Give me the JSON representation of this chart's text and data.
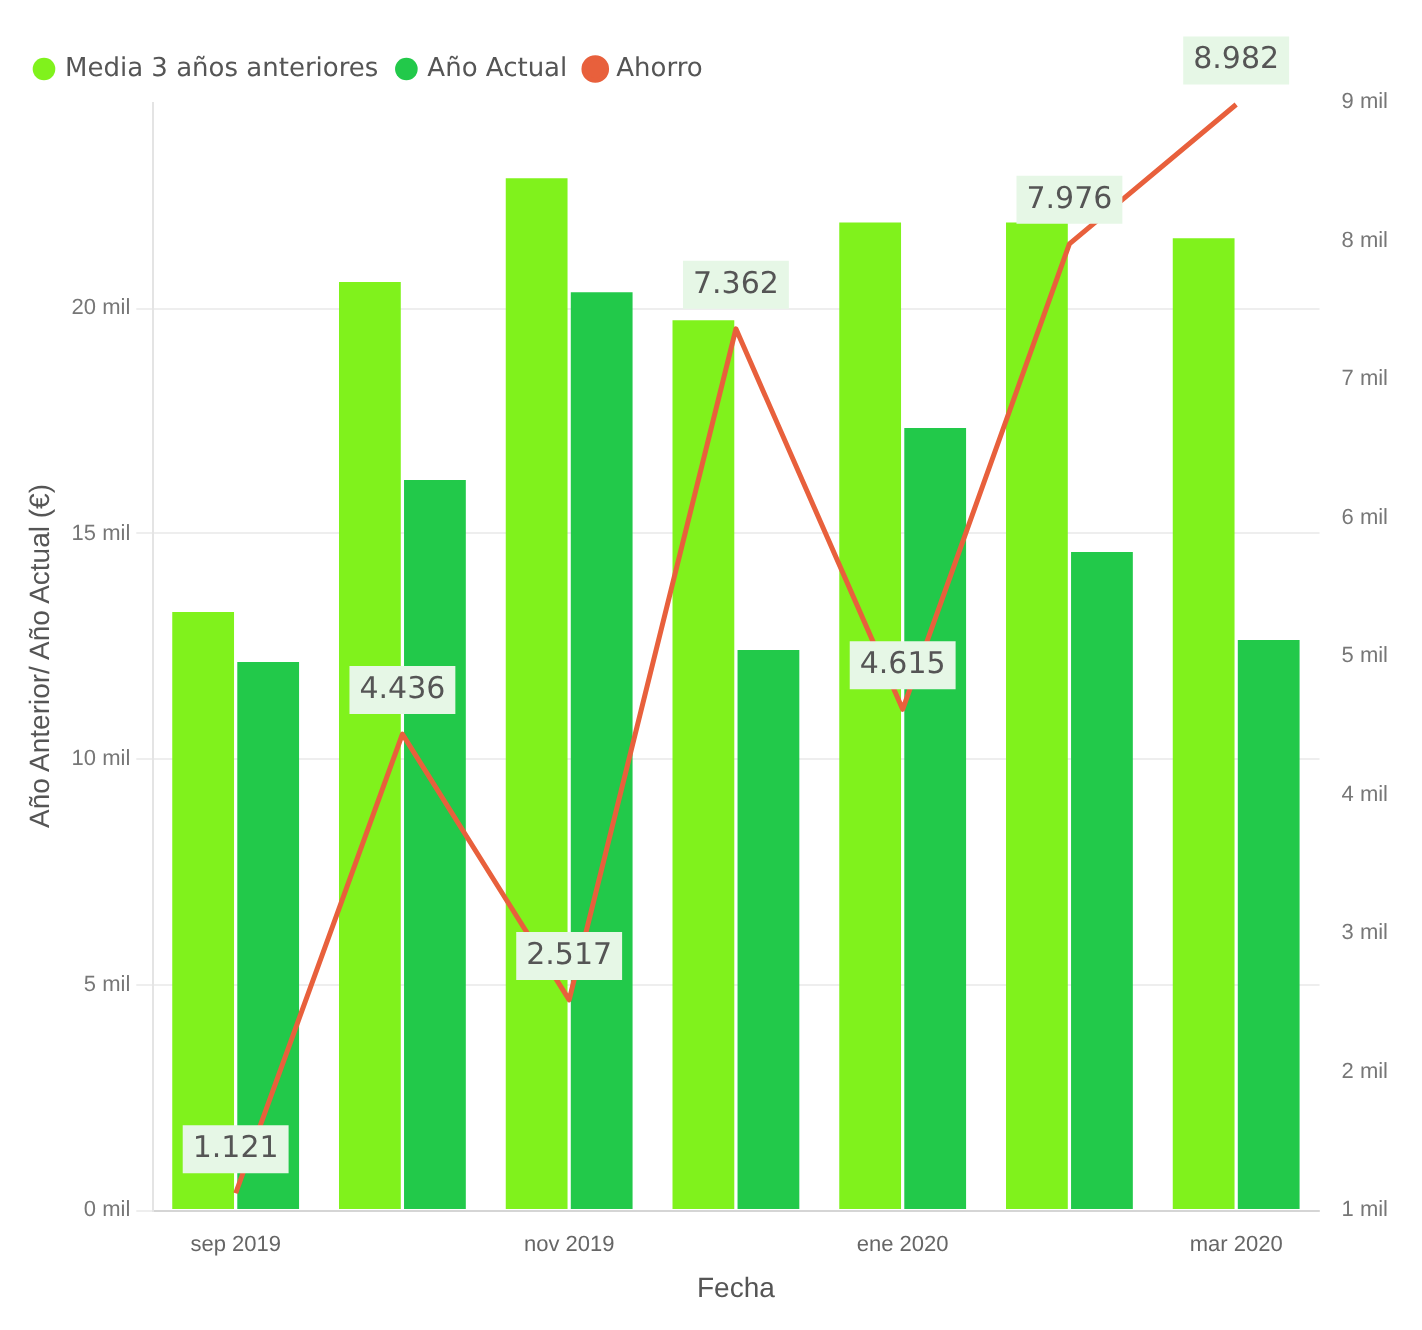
{
  "chart_data": {
    "type": "bar",
    "xlabel": "Fecha",
    "ylabel": "Año Anterior/ Año Actual (€)",
    "categories": [
      "sep 2019",
      null,
      "nov 2019",
      null,
      "ene 2020",
      null,
      "mar 2020"
    ],
    "series": [
      {
        "name": "Media 3 años anteriores",
        "color": "#80f21c",
        "values": [
          13.26,
          20.58,
          22.88,
          19.73,
          21.9,
          21.9,
          21.55
        ]
      },
      {
        "name": "Año Actual",
        "color": "#22c94a",
        "values": [
          12.15,
          16.19,
          20.35,
          12.42,
          17.34,
          14.59,
          12.64
        ]
      },
      {
        "name": "Ahorro",
        "type": "line",
        "axis": "y2",
        "color": "#e8603c",
        "values": [
          1.121,
          4.436,
          2.517,
          7.362,
          4.615,
          7.976,
          8.982
        ],
        "value_labels": [
          "1.121",
          "4.436",
          "2.517",
          "7.362",
          "4.615",
          "7.976",
          "8.982"
        ]
      }
    ],
    "ylim": [
      0,
      24.57
    ],
    "yticks": [
      {
        "value": 0,
        "label": "0 mil"
      },
      {
        "value": 5,
        "label": "5 mil"
      },
      {
        "value": 10,
        "label": "10 mil"
      },
      {
        "value": 15,
        "label": "15 mil"
      },
      {
        "value": 20,
        "label": "20 mil"
      }
    ],
    "y2lim": [
      1,
      9
    ],
    "y2ticks": [
      {
        "value": 1,
        "label": "1 mil"
      },
      {
        "value": 2,
        "label": "2 mil"
      },
      {
        "value": 3,
        "label": "3 mil"
      },
      {
        "value": 4,
        "label": "4 mil"
      },
      {
        "value": 5,
        "label": "5 mil"
      },
      {
        "value": 6,
        "label": "6 mil"
      },
      {
        "value": 7,
        "label": "7 mil"
      },
      {
        "value": 8,
        "label": "8 mil"
      },
      {
        "value": 9,
        "label": "9 mil"
      }
    ],
    "grid": "y",
    "legend": "top left",
    "marker": "none",
    "line_style": "solid"
  }
}
